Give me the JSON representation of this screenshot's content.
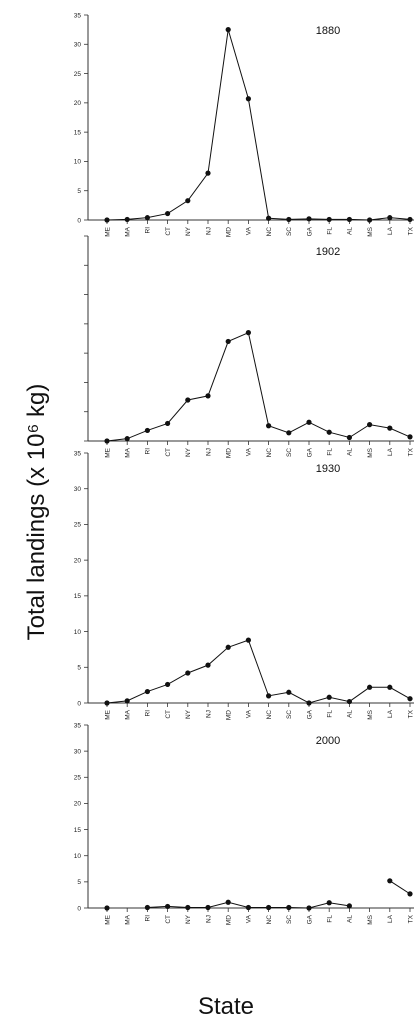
{
  "figure": {
    "ylabel": "Total landings (x 10⁶ kg)",
    "xlabel": "State"
  },
  "chart_data": [
    {
      "type": "line",
      "title": "1880",
      "categories": [
        "ME",
        "MA",
        "RI",
        "CT",
        "NY",
        "NJ",
        "MD",
        "VA",
        "NC",
        "SC",
        "GA",
        "FL",
        "AL",
        "MS",
        "LA",
        "TX"
      ],
      "values": [
        0,
        0.1,
        0.4,
        1.1,
        3.3,
        8.0,
        32.5,
        20.7,
        0.3,
        0.1,
        0.2,
        0.1,
        0.1,
        0.0,
        0.4,
        0.1
      ],
      "ylim": [
        0,
        35
      ],
      "yticks": [
        "0",
        "5",
        "10",
        "15",
        "20",
        "25",
        "30",
        "35"
      ],
      "grid": false
    },
    {
      "type": "line",
      "title": "1902",
      "categories": [
        "ME",
        "MA",
        "RI",
        "CT",
        "NY",
        "NJ",
        "MD",
        "VA",
        "NC",
        "SC",
        "GA",
        "FL",
        "AL",
        "MS",
        "LA",
        "TX"
      ],
      "values": [
        0,
        0.4,
        1.8,
        3.0,
        7.0,
        7.7,
        17.0,
        18.5,
        2.6,
        1.4,
        3.2,
        1.5,
        0.6,
        2.8,
        2.2,
        0.7
      ],
      "ylim": [
        0,
        35
      ],
      "yticks": [
        "",
        "",
        "",
        "",
        "",
        "",
        "",
        ""
      ],
      "grid": false
    },
    {
      "type": "line",
      "title": "1930",
      "categories": [
        "ME",
        "MA",
        "RI",
        "CT",
        "NY",
        "NJ",
        "MD",
        "VA",
        "NC",
        "SC",
        "GA",
        "FL",
        "AL",
        "MS",
        "LA",
        "TX"
      ],
      "values": [
        0,
        0.3,
        1.6,
        2.6,
        4.2,
        5.3,
        7.8,
        8.8,
        1.0,
        1.5,
        0.0,
        0.8,
        0.2,
        2.2,
        2.2,
        0.6
      ],
      "ylim": [
        0,
        35
      ],
      "yticks": [
        "0",
        "5",
        "10",
        "15",
        "20",
        "25",
        "30",
        "35"
      ],
      "grid": false
    },
    {
      "type": "line",
      "title": "2000",
      "categories": [
        "ME",
        "MA",
        "RI",
        "CT",
        "NY",
        "NJ",
        "MD",
        "VA",
        "NC",
        "SC",
        "GA",
        "FL",
        "AL",
        "MS",
        "LA",
        "TX"
      ],
      "values": [
        0,
        null,
        0.1,
        0.3,
        0.1,
        0.1,
        1.1,
        0.1,
        0.1,
        0.1,
        0.0,
        1.0,
        0.4,
        null,
        5.2,
        2.7
      ],
      "ylim": [
        0,
        35
      ],
      "yticks": [
        "0",
        "5",
        "10",
        "15",
        "20",
        "25",
        "30",
        "35"
      ],
      "grid": false
    }
  ]
}
